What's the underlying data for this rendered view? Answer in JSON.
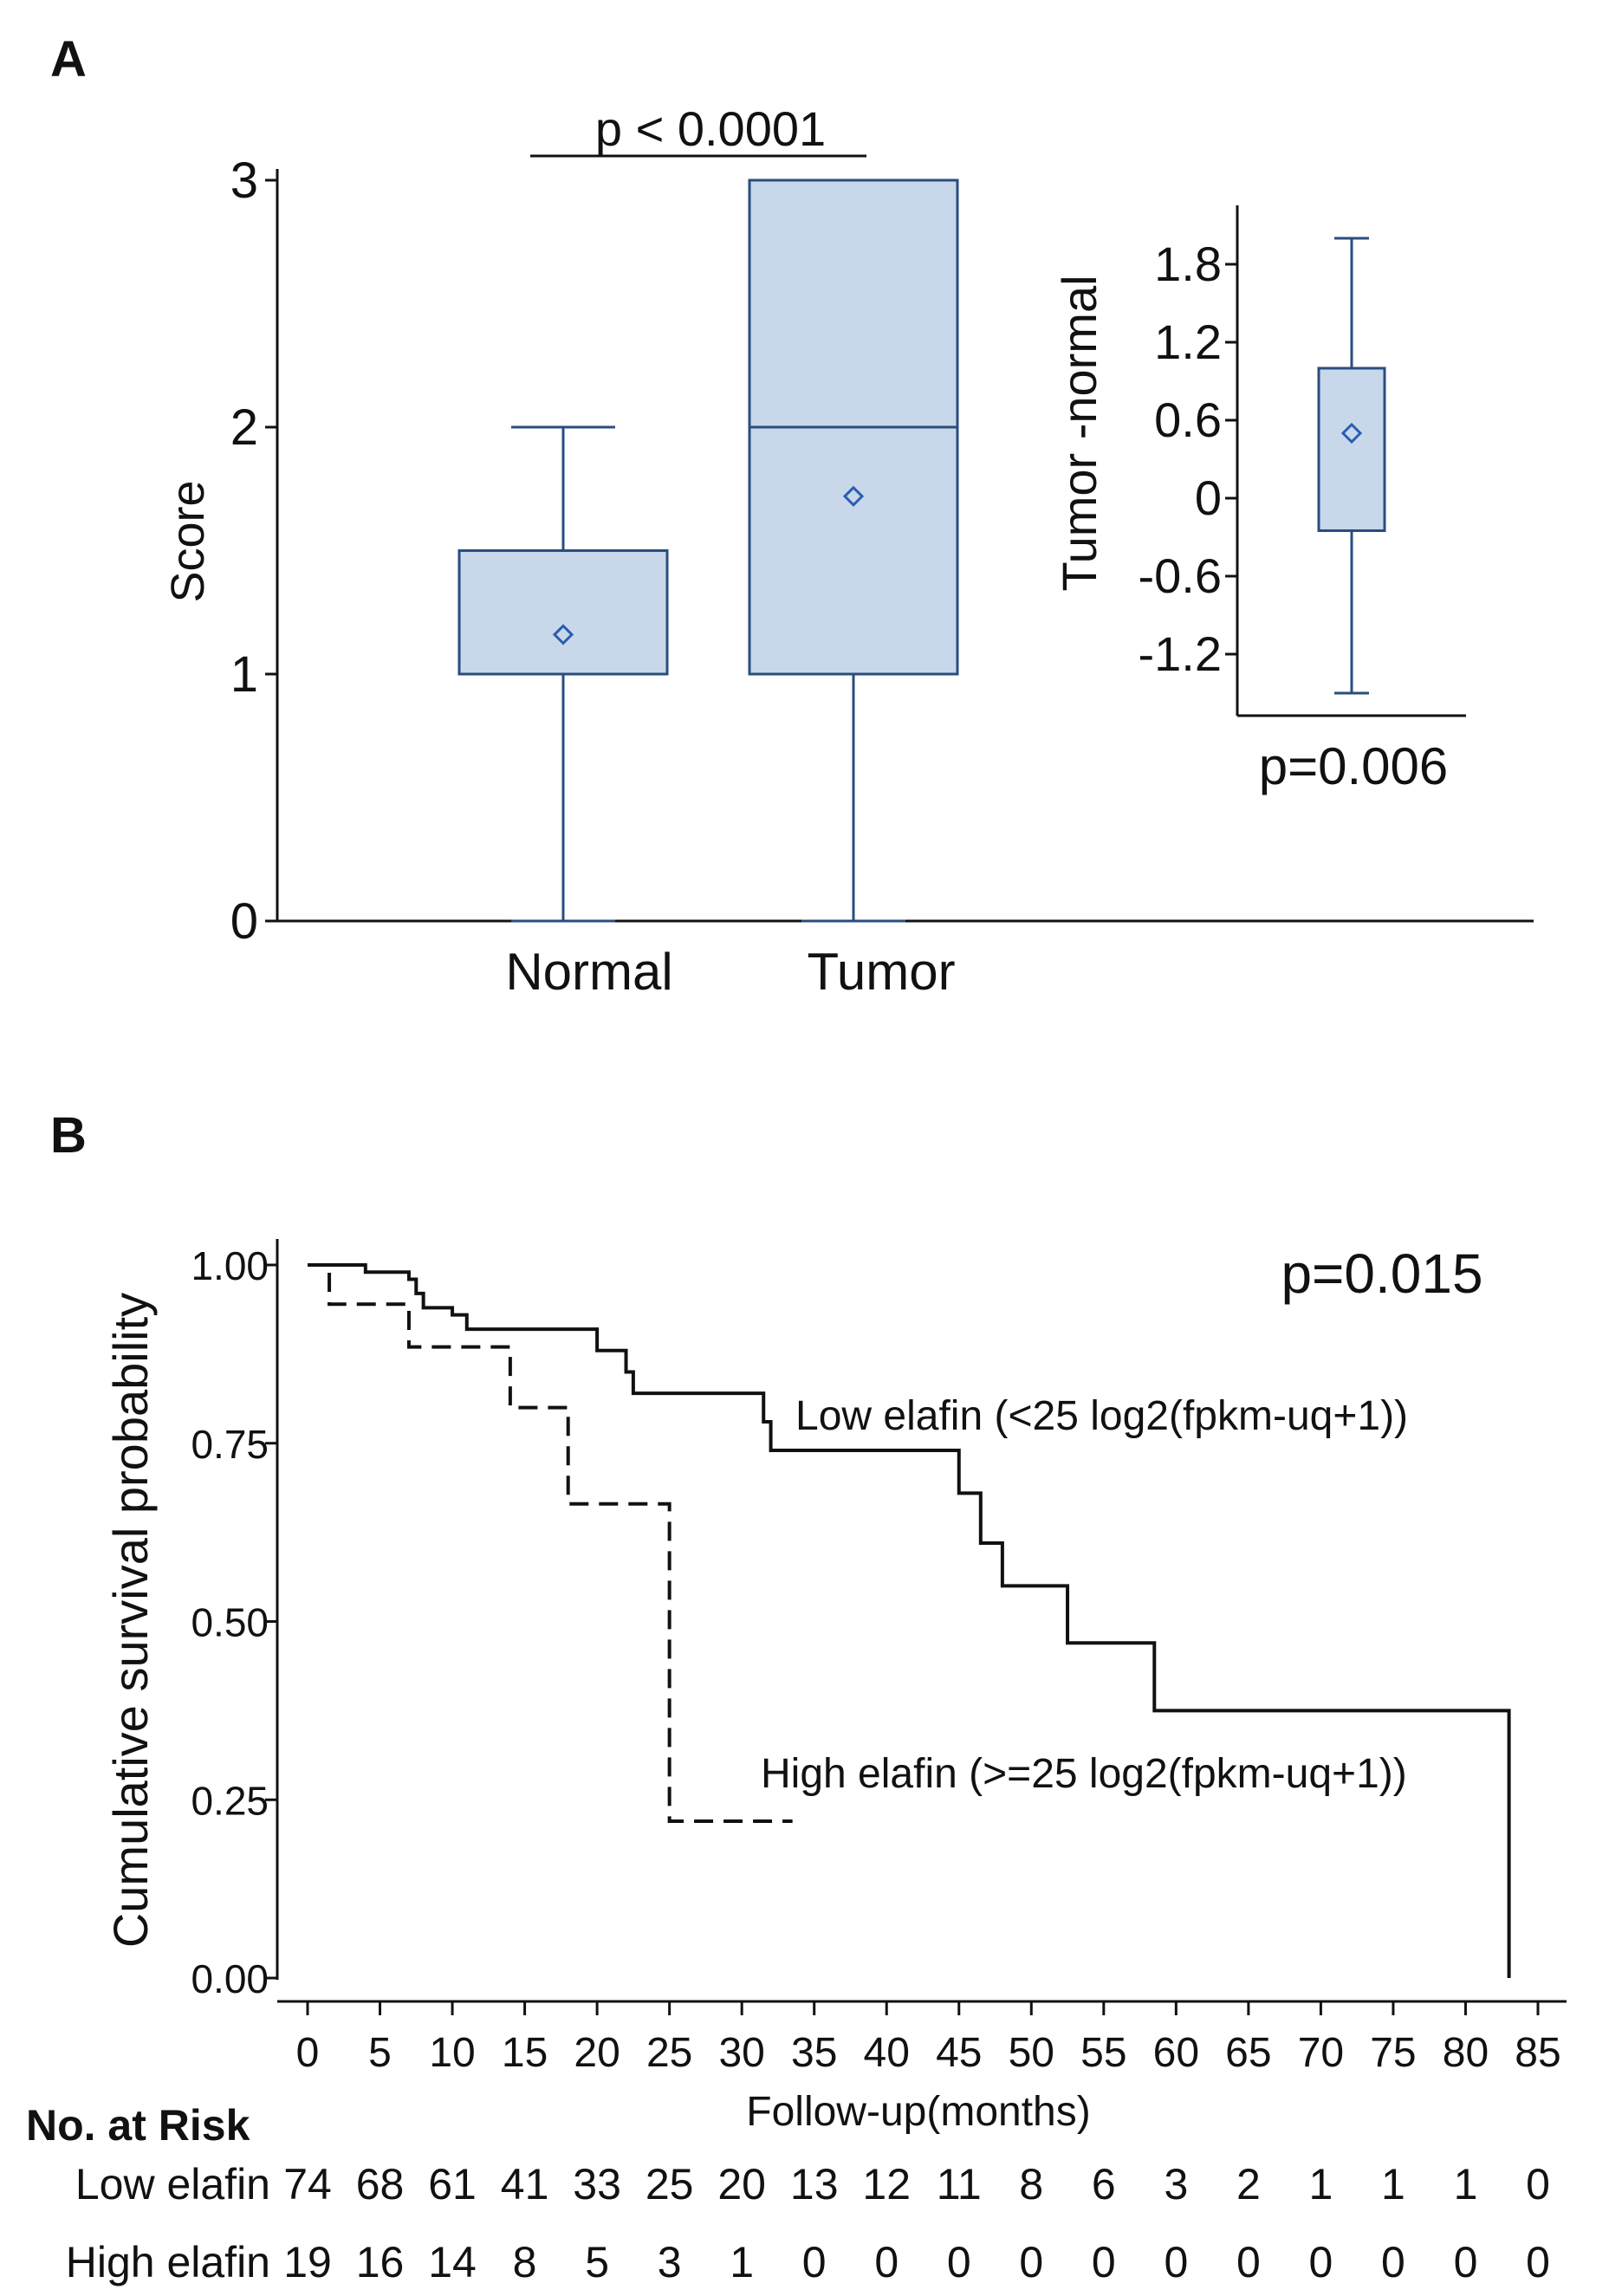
{
  "panel_a": {
    "label": "A",
    "significance": "p < 0.0001",
    "inset_pvalue": "p=0.006"
  },
  "panel_b": {
    "label": "B",
    "pvalue": "p=0.015"
  },
  "risk_table": {
    "header": "No. at Risk",
    "rows": [
      {
        "label": "Low elafin",
        "values": [
          "74",
          "68",
          "61",
          "41",
          "33",
          "25",
          "20",
          "13",
          "12",
          "11",
          "8",
          "6",
          "3",
          "2",
          "1",
          "1",
          "1",
          "0"
        ]
      },
      {
        "label": "High elafin",
        "values": [
          "19",
          "16",
          "14",
          "8",
          "5",
          "3",
          "1",
          "0",
          "0",
          "0",
          "0",
          "0",
          "0",
          "0",
          "0",
          "0",
          "0",
          "0"
        ]
      }
    ]
  },
  "colors": {
    "box_fill": "#c8d8ea",
    "box_stroke": "#2a4d7f",
    "mean_marker": "#2a5db0",
    "axis": "#111111"
  },
  "chart_data": [
    {
      "type": "box",
      "title": "",
      "xlabel": "",
      "ylabel": "Score",
      "ylim": [
        0,
        3
      ],
      "yticks": [
        "0",
        "1",
        "2",
        "3"
      ],
      "categories": [
        "Normal",
        "Tumor"
      ],
      "boxes": [
        {
          "name": "Normal",
          "min": 0,
          "q1": 1,
          "median": 1,
          "q3": 1.5,
          "max": 2,
          "mean": 1.16
        },
        {
          "name": "Tumor",
          "min": 0,
          "q1": 1,
          "median": 2,
          "q3": 3,
          "max": 3,
          "mean": 1.72
        }
      ]
    },
    {
      "type": "box",
      "title": "",
      "xlabel": "",
      "ylabel": "Tumor -normal",
      "ylim": [
        -1.6,
        2.2
      ],
      "yticks": [
        "-1.2",
        "-0.6",
        "0",
        "0.6",
        "1.2",
        "1.8"
      ],
      "boxes": [
        {
          "name": "Tumor -normal",
          "min": -1.5,
          "q1": -0.25,
          "median": -0.25,
          "q3": 1.0,
          "max": 2.0,
          "mean": 0.5
        }
      ]
    },
    {
      "type": "line",
      "title": "",
      "xlabel": "Follow-up(months)",
      "ylabel": "Cumulative survival probability",
      "xlim": [
        0,
        85
      ],
      "ylim": [
        0,
        1
      ],
      "xticks": [
        "0",
        "5",
        "10",
        "15",
        "20",
        "25",
        "30",
        "35",
        "40",
        "45",
        "50",
        "55",
        "60",
        "65",
        "70",
        "75",
        "80",
        "85"
      ],
      "yticks": [
        "0.00",
        "0.25",
        "0.50",
        "0.75",
        "1.00"
      ],
      "series": [
        {
          "name": "Low elafin (<25 log2(fpkm-uq+1))",
          "style": "solid",
          "x": [
            0,
            4,
            7,
            7.5,
            8,
            10,
            11,
            20,
            22,
            22.5,
            31.5,
            32,
            45,
            46.5,
            48,
            52.5,
            58.5,
            83,
            83
          ],
          "y": [
            1.0,
            0.99,
            0.98,
            0.96,
            0.94,
            0.93,
            0.91,
            0.88,
            0.85,
            0.82,
            0.78,
            0.74,
            0.68,
            0.61,
            0.55,
            0.47,
            0.375,
            0.375,
            0.0
          ]
        },
        {
          "name": "High elafin (>=25 log2(fpkm-uq+1))",
          "style": "dashed",
          "x": [
            0,
            1.5,
            7,
            14,
            18,
            25,
            33.5
          ],
          "y": [
            1.0,
            0.945,
            0.885,
            0.8,
            0.665,
            0.22,
            0.22
          ]
        }
      ]
    }
  ]
}
